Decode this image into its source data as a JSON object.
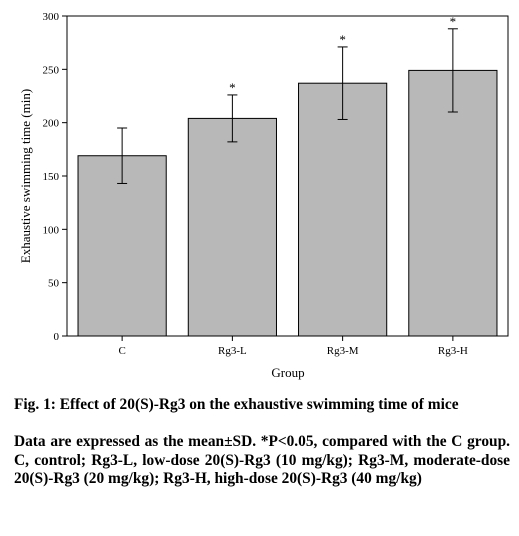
{
  "chart_data": {
    "type": "bar",
    "categories": [
      "C",
      "Rg3-L",
      "Rg3-M",
      "Rg3-H"
    ],
    "values": [
      169,
      204,
      237,
      249
    ],
    "errors": [
      26,
      22,
      34,
      39
    ],
    "significance": [
      "",
      "*",
      "*",
      "*"
    ],
    "xlabel": "Group",
    "ylabel": "Exhaustive swimming time (min)",
    "ylim": [
      0,
      300
    ],
    "yticks": [
      0,
      50,
      100,
      150,
      200,
      250,
      300
    ],
    "bar_color": "#b8b8b8",
    "grid": false,
    "box": true
  },
  "caption": {
    "title": "Fig. 1: Effect of 20(S)-Rg3 on the exhaustive swimming time of mice",
    "note": "Data are expressed as the mean±SD. *P<0.05, compared with the C group. C, control; Rg3-L, low-dose 20(S)-Rg3 (10 mg/kg); Rg3-M, moderate-dose 20(S)-Rg3 (20 mg/kg); Rg3-H, high-dose 20(S)-Rg3 (40 mg/kg)"
  }
}
